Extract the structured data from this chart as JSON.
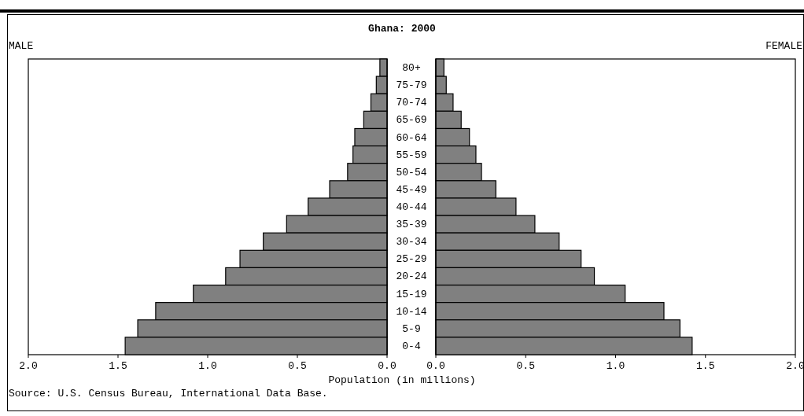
{
  "chart_data": [
    {
      "type": "bar",
      "orientation": "horizontal",
      "title": "Ghana: 2000",
      "subtitle": "MALE",
      "xlabel": "Population (in millions)",
      "annotations": [
        "Source: U.S. Census Bureau, International Data Base."
      ],
      "categories": [
        null,
        null,
        null,
        null,
        null,
        null,
        null,
        null,
        null,
        null,
        null,
        null,
        null,
        null,
        null,
        null,
        null
      ],
      "values": [
        0.04,
        0.06,
        0.09,
        0.13,
        0.18,
        0.19,
        0.22,
        0.32,
        0.44,
        0.56,
        0.69,
        0.82,
        0.9,
        1.08,
        1.29,
        1.39,
        1.46
      ],
      "color": "#808080",
      "xlim": [
        2,
        0
      ],
      "xticks": [
        {
          "value": 2,
          "label": "2.0"
        },
        {
          "value": 1.5,
          "label": "1.5"
        },
        {
          "value": 1,
          "label": "1.0"
        },
        {
          "value": 0.5,
          "label": "0.5"
        },
        {
          "value": 0,
          "label": "0.0"
        }
      ],
      "tick_labels": "x",
      "grid": false
    },
    {
      "type": "bar",
      "orientation": "horizontal",
      "subtitle": "FEMALE",
      "categories": [
        "80+",
        "75-79",
        "70-74",
        "65-69",
        "60-64",
        "55-59",
        "50-54",
        "45-49",
        "40-44",
        "35-39",
        "30-34",
        "25-29",
        "20-24",
        "15-19",
        "10-14",
        "5-9",
        "0-4"
      ],
      "values": [
        0.045,
        0.058,
        0.096,
        0.141,
        0.187,
        0.223,
        0.254,
        0.334,
        0.446,
        0.551,
        0.686,
        0.808,
        0.882,
        1.053,
        1.269,
        1.358,
        1.426
      ],
      "color": "#808080",
      "xlim": [
        0,
        2
      ],
      "xticks": [
        {
          "value": 0,
          "label": "0.0"
        },
        {
          "value": 0.5,
          "label": "0.5"
        },
        {
          "value": 1,
          "label": "1.0"
        },
        {
          "value": 1.5,
          "label": "1.5"
        },
        {
          "value": 2,
          "label": "2.0"
        }
      ],
      "grid": false
    }
  ]
}
